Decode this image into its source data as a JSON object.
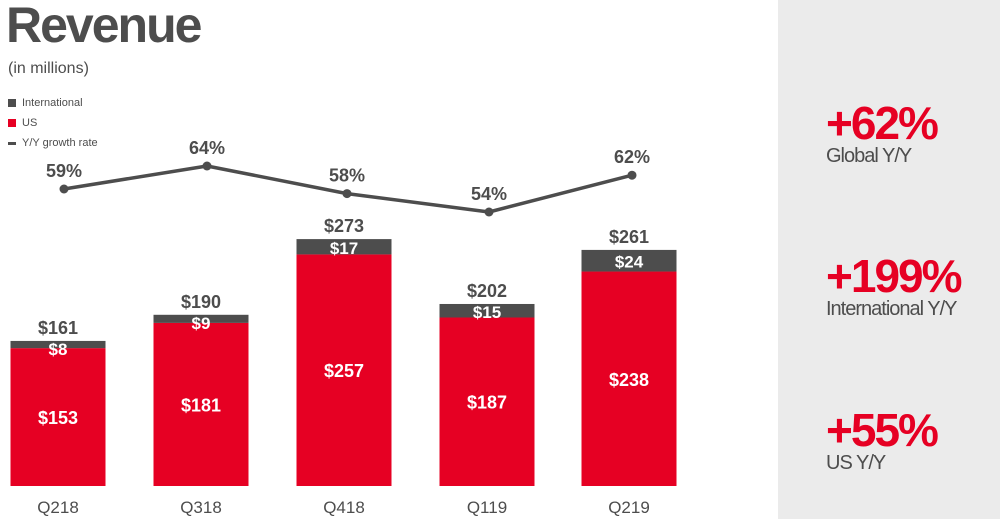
{
  "title": "Revenue",
  "subtitle": "(in millions)",
  "legend": [
    {
      "label": "International",
      "color": "#4d4d4d",
      "kind": "square"
    },
    {
      "label": "US",
      "color": "#e60023",
      "kind": "square"
    },
    {
      "label": "Y/Y growth rate",
      "color": "#4d4d4d",
      "kind": "line"
    }
  ],
  "chart_data": {
    "type": "bar",
    "stacked": true,
    "categories": [
      "Q218",
      "Q318",
      "Q418",
      "Q119",
      "Q219"
    ],
    "series": [
      {
        "name": "US",
        "values": [
          153,
          181,
          257,
          187,
          238
        ],
        "labels": [
          "$153",
          "$181",
          "$257",
          "$187",
          "$238"
        ],
        "color": "#e60023"
      },
      {
        "name": "International",
        "values": [
          8,
          9,
          17,
          15,
          24
        ],
        "labels": [
          "$8",
          "$9",
          "$17",
          "$15",
          "$24"
        ],
        "color": "#4d4d4d"
      }
    ],
    "totals": [
      161,
      190,
      273,
      202,
      261
    ],
    "total_labels": [
      "$161",
      "$190",
      "$273",
      "$202",
      "$261"
    ],
    "line_series": {
      "name": "Y/Y growth rate",
      "values": [
        59,
        64,
        58,
        54,
        62
      ],
      "labels": [
        "59%",
        "64%",
        "58%",
        "54%",
        "62%"
      ],
      "color": "#4d4d4d"
    },
    "ylim": [
      0,
      273
    ]
  },
  "highlights": [
    {
      "value": "+62%",
      "label": "Global Y/Y"
    },
    {
      "value": "+199%",
      "label": "International Y/Y"
    },
    {
      "value": "+55%",
      "label": "US Y/Y"
    }
  ]
}
